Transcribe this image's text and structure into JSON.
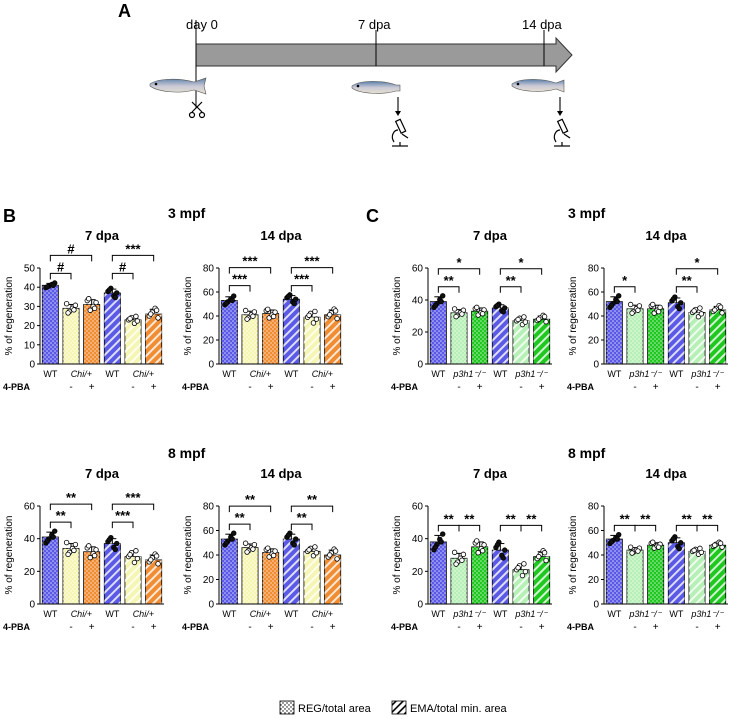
{
  "panel_a": {
    "letter": "A",
    "timepoints": [
      "day 0",
      "7 dpa",
      "14 dpa"
    ]
  },
  "panel_b": {
    "letter": "B",
    "row_titles": [
      "3 mpf",
      "8 mpf"
    ]
  },
  "panel_c": {
    "letter": "C",
    "row_titles": [
      "3 mpf",
      "8 mpf"
    ]
  },
  "legend": {
    "reg_label": "REG/total area",
    "ema_label": "EMA/total min. area"
  },
  "colors": {
    "blue": "#5a5ae6",
    "yellow": "#f6f6b4",
    "orange": "#f08c32",
    "lightgreen": "#b6f0b6",
    "green": "#1ec81e"
  },
  "chart_data": [
    {
      "id": "B-3mpf-7dpa",
      "type": "bar",
      "title": "7 dpa",
      "ylabel": "% of regeneration",
      "ylim": [
        0,
        50
      ],
      "yticks": [
        0,
        10,
        20,
        30,
        40,
        50
      ],
      "genotype_labels": [
        "WT",
        "Chi/+",
        "WT",
        "Chi/+"
      ],
      "pba_labels": [
        "-",
        "+",
        "-",
        "+"
      ],
      "pba_title": "4-PBA",
      "bars": [
        {
          "value": 41,
          "err": 1,
          "fill": "blue",
          "pattern": "dots"
        },
        {
          "value": 29,
          "err": 2,
          "fill": "yellow",
          "pattern": "dots"
        },
        {
          "value": 31,
          "err": 2.5,
          "fill": "orange",
          "pattern": "dots"
        },
        {
          "value": 37,
          "err": 2,
          "fill": "blue",
          "pattern": "hatch"
        },
        {
          "value": 23,
          "err": 1.5,
          "fill": "yellow",
          "pattern": "hatch"
        },
        {
          "value": 26,
          "err": 2.5,
          "fill": "orange",
          "pattern": "hatch"
        }
      ],
      "brackets": [
        {
          "from": 0,
          "to": 1,
          "level": 0,
          "text": "#"
        },
        {
          "from": 0,
          "to": 2,
          "level": 1,
          "text": "#"
        },
        {
          "from": 3,
          "to": 4,
          "level": 0,
          "text": "#"
        },
        {
          "from": 3,
          "to": 5,
          "level": 1,
          "text": "***"
        }
      ]
    },
    {
      "id": "B-3mpf-14dpa",
      "type": "bar",
      "title": "14 dpa",
      "ylabel": "% of regeneration",
      "ylim": [
        0,
        80
      ],
      "yticks": [
        0,
        20,
        40,
        60,
        80
      ],
      "genotype_labels": [
        "WT",
        "Chi/+",
        "WT",
        "Chi/+"
      ],
      "pba_labels": [
        "-",
        "+",
        "-",
        "+"
      ],
      "pba_title": "4-PBA",
      "bars": [
        {
          "value": 53,
          "err": 3,
          "fill": "blue",
          "pattern": "dots"
        },
        {
          "value": 41,
          "err": 3,
          "fill": "yellow",
          "pattern": "dots"
        },
        {
          "value": 42,
          "err": 3,
          "fill": "orange",
          "pattern": "dots"
        },
        {
          "value": 54,
          "err": 3,
          "fill": "blue",
          "pattern": "hatch"
        },
        {
          "value": 39,
          "err": 4,
          "fill": "yellow",
          "pattern": "hatch"
        },
        {
          "value": 41,
          "err": 4,
          "fill": "orange",
          "pattern": "hatch"
        }
      ],
      "brackets": [
        {
          "from": 0,
          "to": 1,
          "level": 0,
          "text": "***"
        },
        {
          "from": 0,
          "to": 2,
          "level": 1,
          "text": "***"
        },
        {
          "from": 3,
          "to": 4,
          "level": 0,
          "text": "***"
        },
        {
          "from": 3,
          "to": 5,
          "level": 1,
          "text": "***"
        }
      ]
    },
    {
      "id": "B-8mpf-7dpa",
      "type": "bar",
      "title": "7 dpa",
      "ylabel": "% of regeneration",
      "ylim": [
        0,
        60
      ],
      "yticks": [
        0,
        20,
        40,
        60
      ],
      "genotype_labels": [
        "WT",
        "Chi/+",
        "WT",
        "Chi/+"
      ],
      "pba_labels": [
        "-",
        "+",
        "-",
        "+"
      ],
      "pba_title": "4-PBA",
      "bars": [
        {
          "value": 41,
          "err": 3,
          "fill": "blue",
          "pattern": "dots"
        },
        {
          "value": 34,
          "err": 3,
          "fill": "yellow",
          "pattern": "dots"
        },
        {
          "value": 32,
          "err": 3,
          "fill": "orange",
          "pattern": "dots"
        },
        {
          "value": 37,
          "err": 3,
          "fill": "blue",
          "pattern": "hatch"
        },
        {
          "value": 29,
          "err": 3,
          "fill": "yellow",
          "pattern": "hatch"
        },
        {
          "value": 27,
          "err": 3,
          "fill": "orange",
          "pattern": "hatch"
        }
      ],
      "brackets": [
        {
          "from": 0,
          "to": 1,
          "level": 0,
          "text": "**"
        },
        {
          "from": 0,
          "to": 2,
          "level": 1,
          "text": "**"
        },
        {
          "from": 3,
          "to": 4,
          "level": 0,
          "text": "***"
        },
        {
          "from": 3,
          "to": 5,
          "level": 1,
          "text": "***"
        }
      ]
    },
    {
      "id": "B-8mpf-14dpa",
      "type": "bar",
      "title": "14 dpa",
      "ylabel": "% of regeneration",
      "ylim": [
        0,
        80
      ],
      "yticks": [
        0,
        20,
        40,
        60,
        80
      ],
      "genotype_labels": [
        "WT",
        "Chi/+",
        "WT",
        "Chi/+"
      ],
      "pba_labels": [
        "-",
        "+",
        "-",
        "+"
      ],
      "pba_title": "4-PBA",
      "bars": [
        {
          "value": 53,
          "err": 4,
          "fill": "blue",
          "pattern": "dots"
        },
        {
          "value": 46,
          "err": 3,
          "fill": "yellow",
          "pattern": "dots"
        },
        {
          "value": 42,
          "err": 3,
          "fill": "orange",
          "pattern": "dots"
        },
        {
          "value": 53,
          "err": 4,
          "fill": "blue",
          "pattern": "hatch"
        },
        {
          "value": 43,
          "err": 3,
          "fill": "yellow",
          "pattern": "hatch"
        },
        {
          "value": 40,
          "err": 4,
          "fill": "orange",
          "pattern": "hatch"
        }
      ],
      "brackets": [
        {
          "from": 0,
          "to": 1,
          "level": 0,
          "text": "**"
        },
        {
          "from": 0,
          "to": 2,
          "level": 1,
          "text": "**"
        },
        {
          "from": 3,
          "to": 4,
          "level": 0,
          "text": "**"
        },
        {
          "from": 3,
          "to": 5,
          "level": 1,
          "text": "**"
        }
      ]
    },
    {
      "id": "C-3mpf-7dpa",
      "type": "bar",
      "title": "7 dpa",
      "ylabel": "% of regeneration",
      "ylim": [
        0,
        60
      ],
      "yticks": [
        0,
        20,
        40,
        60
      ],
      "genotype_labels": [
        "WT",
        "p3h1⁻/⁻",
        "WT",
        "p3h1⁻/⁻"
      ],
      "pba_labels": [
        "-",
        "+",
        "-",
        "+"
      ],
      "pba_title": "4-PBA",
      "bars": [
        {
          "value": 39,
          "err": 3,
          "fill": "blue",
          "pattern": "dots"
        },
        {
          "value": 32,
          "err": 2,
          "fill": "lightgreen",
          "pattern": "dots"
        },
        {
          "value": 33,
          "err": 2,
          "fill": "green",
          "pattern": "dots"
        },
        {
          "value": 35,
          "err": 2,
          "fill": "blue",
          "pattern": "hatch"
        },
        {
          "value": 27,
          "err": 2,
          "fill": "lightgreen",
          "pattern": "hatch"
        },
        {
          "value": 28,
          "err": 2,
          "fill": "green",
          "pattern": "hatch"
        }
      ],
      "brackets": [
        {
          "from": 0,
          "to": 1,
          "level": 0,
          "text": "**"
        },
        {
          "from": 0,
          "to": 2,
          "level": 1,
          "text": "*"
        },
        {
          "from": 3,
          "to": 4,
          "level": 0,
          "text": "**"
        },
        {
          "from": 3,
          "to": 5,
          "level": 1,
          "text": "*"
        }
      ]
    },
    {
      "id": "C-3mpf-14dpa",
      "type": "bar",
      "title": "14 dpa",
      "ylabel": "% of regeneration",
      "ylim": [
        0,
        80
      ],
      "yticks": [
        0,
        20,
        40,
        60,
        80
      ],
      "genotype_labels": [
        "WT",
        "p3h1⁻/⁻",
        "WT",
        "p3h1⁻/⁻"
      ],
      "pba_labels": [
        "-",
        "+",
        "-",
        "+"
      ],
      "pba_title": "4-PBA",
      "bars": [
        {
          "value": 52,
          "err": 4,
          "fill": "blue",
          "pattern": "dots"
        },
        {
          "value": 46,
          "err": 3,
          "fill": "lightgreen",
          "pattern": "dots"
        },
        {
          "value": 46,
          "err": 3,
          "fill": "green",
          "pattern": "dots"
        },
        {
          "value": 51,
          "err": 4,
          "fill": "blue",
          "pattern": "hatch"
        },
        {
          "value": 43,
          "err": 3,
          "fill": "lightgreen",
          "pattern": "hatch"
        },
        {
          "value": 45,
          "err": 3,
          "fill": "green",
          "pattern": "hatch"
        }
      ],
      "brackets": [
        {
          "from": 0,
          "to": 1,
          "level": 0,
          "text": "*"
        },
        {
          "from": 3,
          "to": 4,
          "level": 0,
          "text": "**"
        },
        {
          "from": 3,
          "to": 5,
          "level": 1,
          "text": "*"
        }
      ]
    },
    {
      "id": "C-8mpf-7dpa",
      "type": "bar",
      "title": "7 dpa",
      "ylabel": "% of regeneration",
      "ylim": [
        0,
        60
      ],
      "yticks": [
        0,
        20,
        40,
        60
      ],
      "genotype_labels": [
        "WT",
        "p3h1⁻/⁻",
        "WT",
        "p3h1⁻/⁻"
      ],
      "pba_labels": [
        "-",
        "+",
        "-",
        "+"
      ],
      "pba_title": "4-PBA",
      "bars": [
        {
          "value": 38,
          "err": 4,
          "fill": "blue",
          "pattern": "dots"
        },
        {
          "value": 28,
          "err": 3,
          "fill": "lightgreen",
          "pattern": "dots"
        },
        {
          "value": 35,
          "err": 3,
          "fill": "green",
          "pattern": "dots"
        },
        {
          "value": 33,
          "err": 4,
          "fill": "blue",
          "pattern": "hatch"
        },
        {
          "value": 21,
          "err": 3,
          "fill": "lightgreen",
          "pattern": "hatch"
        },
        {
          "value": 29,
          "err": 3,
          "fill": "green",
          "pattern": "hatch"
        }
      ],
      "brackets": [
        {
          "from": 0,
          "to": 1,
          "level": 0,
          "text": "**"
        },
        {
          "from": 1,
          "to": 2,
          "level": 0,
          "text": "**"
        },
        {
          "from": 3,
          "to": 4,
          "level": 0,
          "text": "**"
        },
        {
          "from": 4,
          "to": 5,
          "level": 0,
          "text": "**"
        }
      ]
    },
    {
      "id": "C-8mpf-14dpa",
      "type": "bar",
      "title": "14 dpa",
      "ylabel": "% of regeneration",
      "ylim": [
        0,
        80
      ],
      "yticks": [
        0,
        20,
        40,
        60,
        80
      ],
      "genotype_labels": [
        "WT",
        "p3h1⁻/⁻",
        "WT",
        "p3h1⁻/⁻"
      ],
      "pba_labels": [
        "-",
        "+",
        "-",
        "+"
      ],
      "pba_title": "4-PBA",
      "bars": [
        {
          "value": 53,
          "err": 3,
          "fill": "blue",
          "pattern": "dots"
        },
        {
          "value": 44,
          "err": 2,
          "fill": "lightgreen",
          "pattern": "dots"
        },
        {
          "value": 48,
          "err": 2,
          "fill": "green",
          "pattern": "dots"
        },
        {
          "value": 50,
          "err": 4,
          "fill": "blue",
          "pattern": "hatch"
        },
        {
          "value": 43,
          "err": 2,
          "fill": "lightgreen",
          "pattern": "hatch"
        },
        {
          "value": 48,
          "err": 2,
          "fill": "green",
          "pattern": "hatch"
        }
      ],
      "brackets": [
        {
          "from": 0,
          "to": 1,
          "level": 0,
          "text": "**"
        },
        {
          "from": 1,
          "to": 2,
          "level": 0,
          "text": "**"
        },
        {
          "from": 3,
          "to": 4,
          "level": 0,
          "text": "**"
        },
        {
          "from": 4,
          "to": 5,
          "level": 0,
          "text": "**"
        }
      ]
    }
  ]
}
